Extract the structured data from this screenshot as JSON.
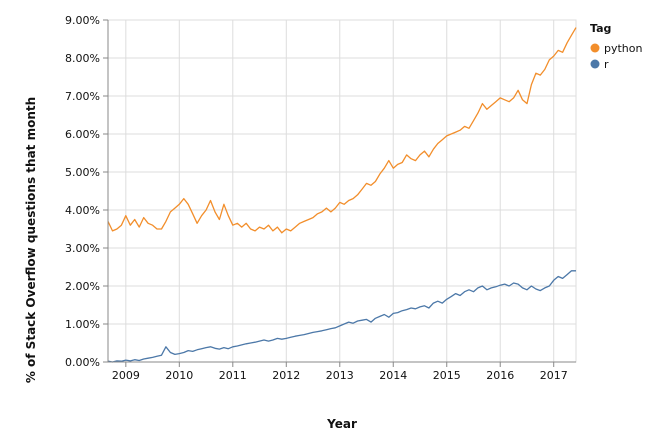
{
  "chart_data": {
    "type": "line",
    "xlabel": "Year",
    "ylabel": "% of Stack Overflow questions that month",
    "x_ticks": [
      "2009",
      "2010",
      "2011",
      "2012",
      "2013",
      "2014",
      "2015",
      "2016",
      "2017"
    ],
    "y_ticks": [
      "0.00%",
      "1.00%",
      "2.00%",
      "3.00%",
      "4.00%",
      "5.00%",
      "6.00%",
      "7.00%",
      "8.00%",
      "9.00%"
    ],
    "xlim": [
      "2008-09",
      "2017-06"
    ],
    "ylim": [
      0,
      9
    ],
    "grid": true,
    "legend": {
      "title": "Tag",
      "position": "right"
    },
    "series": [
      {
        "name": "python",
        "color": "#f28e2b",
        "points": [
          [
            "2008-09",
            3.7
          ],
          [
            "2008-10",
            3.45
          ],
          [
            "2008-11",
            3.5
          ],
          [
            "2008-12",
            3.6
          ],
          [
            "2009-01",
            3.85
          ],
          [
            "2009-02",
            3.6
          ],
          [
            "2009-03",
            3.75
          ],
          [
            "2009-04",
            3.55
          ],
          [
            "2009-05",
            3.8
          ],
          [
            "2009-06",
            3.65
          ],
          [
            "2009-07",
            3.6
          ],
          [
            "2009-08",
            3.5
          ],
          [
            "2009-09",
            3.5
          ],
          [
            "2009-10",
            3.7
          ],
          [
            "2009-11",
            3.95
          ],
          [
            "2009-12",
            4.05
          ],
          [
            "2010-01",
            4.15
          ],
          [
            "2010-02",
            4.3
          ],
          [
            "2010-03",
            4.15
          ],
          [
            "2010-04",
            3.9
          ],
          [
            "2010-05",
            3.65
          ],
          [
            "2010-06",
            3.85
          ],
          [
            "2010-07",
            4.0
          ],
          [
            "2010-08",
            4.25
          ],
          [
            "2010-09",
            3.95
          ],
          [
            "2010-10",
            3.75
          ],
          [
            "2010-11",
            4.15
          ],
          [
            "2010-12",
            3.85
          ],
          [
            "2011-01",
            3.6
          ],
          [
            "2011-02",
            3.65
          ],
          [
            "2011-03",
            3.55
          ],
          [
            "2011-04",
            3.65
          ],
          [
            "2011-05",
            3.5
          ],
          [
            "2011-06",
            3.45
          ],
          [
            "2011-07",
            3.55
          ],
          [
            "2011-08",
            3.5
          ],
          [
            "2011-09",
            3.6
          ],
          [
            "2011-10",
            3.45
          ],
          [
            "2011-11",
            3.55
          ],
          [
            "2011-12",
            3.4
          ],
          [
            "2012-01",
            3.5
          ],
          [
            "2012-02",
            3.45
          ],
          [
            "2012-03",
            3.55
          ],
          [
            "2012-04",
            3.65
          ],
          [
            "2012-05",
            3.7
          ],
          [
            "2012-06",
            3.75
          ],
          [
            "2012-07",
            3.8
          ],
          [
            "2012-08",
            3.9
          ],
          [
            "2012-09",
            3.95
          ],
          [
            "2012-10",
            4.05
          ],
          [
            "2012-11",
            3.95
          ],
          [
            "2012-12",
            4.05
          ],
          [
            "2013-01",
            4.2
          ],
          [
            "2013-02",
            4.15
          ],
          [
            "2013-03",
            4.25
          ],
          [
            "2013-04",
            4.3
          ],
          [
            "2013-05",
            4.4
          ],
          [
            "2013-06",
            4.55
          ],
          [
            "2013-07",
            4.7
          ],
          [
            "2013-08",
            4.65
          ],
          [
            "2013-09",
            4.75
          ],
          [
            "2013-10",
            4.95
          ],
          [
            "2013-11",
            5.1
          ],
          [
            "2013-12",
            5.3
          ],
          [
            "2014-01",
            5.1
          ],
          [
            "2014-02",
            5.2
          ],
          [
            "2014-03",
            5.25
          ],
          [
            "2014-04",
            5.45
          ],
          [
            "2014-05",
            5.35
          ],
          [
            "2014-06",
            5.3
          ],
          [
            "2014-07",
            5.45
          ],
          [
            "2014-08",
            5.55
          ],
          [
            "2014-09",
            5.4
          ],
          [
            "2014-10",
            5.6
          ],
          [
            "2014-11",
            5.75
          ],
          [
            "2014-12",
            5.85
          ],
          [
            "2015-01",
            5.95
          ],
          [
            "2015-02",
            6.0
          ],
          [
            "2015-03",
            6.05
          ],
          [
            "2015-04",
            6.1
          ],
          [
            "2015-05",
            6.2
          ],
          [
            "2015-06",
            6.15
          ],
          [
            "2015-07",
            6.35
          ],
          [
            "2015-08",
            6.55
          ],
          [
            "2015-09",
            6.8
          ],
          [
            "2015-10",
            6.65
          ],
          [
            "2015-11",
            6.75
          ],
          [
            "2015-12",
            6.85
          ],
          [
            "2016-01",
            6.95
          ],
          [
            "2016-02",
            6.9
          ],
          [
            "2016-03",
            6.85
          ],
          [
            "2016-04",
            6.95
          ],
          [
            "2016-05",
            7.15
          ],
          [
            "2016-06",
            6.9
          ],
          [
            "2016-07",
            6.8
          ],
          [
            "2016-08",
            7.3
          ],
          [
            "2016-09",
            7.6
          ],
          [
            "2016-10",
            7.55
          ],
          [
            "2016-11",
            7.7
          ],
          [
            "2016-12",
            7.95
          ],
          [
            "2017-01",
            8.05
          ],
          [
            "2017-02",
            8.2
          ],
          [
            "2017-03",
            8.15
          ],
          [
            "2017-04",
            8.4
          ],
          [
            "2017-05",
            8.6
          ],
          [
            "2017-06",
            8.8
          ]
        ]
      },
      {
        "name": "r",
        "color": "#4c78a8",
        "points": [
          [
            "2008-09",
            0.02
          ],
          [
            "2008-10",
            0.0
          ],
          [
            "2008-11",
            0.03
          ],
          [
            "2008-12",
            0.02
          ],
          [
            "2009-01",
            0.05
          ],
          [
            "2009-02",
            0.03
          ],
          [
            "2009-03",
            0.06
          ],
          [
            "2009-04",
            0.04
          ],
          [
            "2009-05",
            0.08
          ],
          [
            "2009-06",
            0.1
          ],
          [
            "2009-07",
            0.12
          ],
          [
            "2009-08",
            0.15
          ],
          [
            "2009-09",
            0.18
          ],
          [
            "2009-10",
            0.4
          ],
          [
            "2009-11",
            0.25
          ],
          [
            "2009-12",
            0.2
          ],
          [
            "2010-01",
            0.22
          ],
          [
            "2010-02",
            0.25
          ],
          [
            "2010-03",
            0.3
          ],
          [
            "2010-04",
            0.28
          ],
          [
            "2010-05",
            0.32
          ],
          [
            "2010-06",
            0.35
          ],
          [
            "2010-07",
            0.38
          ],
          [
            "2010-08",
            0.4
          ],
          [
            "2010-09",
            0.36
          ],
          [
            "2010-10",
            0.34
          ],
          [
            "2010-11",
            0.38
          ],
          [
            "2010-12",
            0.35
          ],
          [
            "2011-01",
            0.4
          ],
          [
            "2011-02",
            0.42
          ],
          [
            "2011-03",
            0.45
          ],
          [
            "2011-04",
            0.48
          ],
          [
            "2011-05",
            0.5
          ],
          [
            "2011-06",
            0.52
          ],
          [
            "2011-07",
            0.55
          ],
          [
            "2011-08",
            0.58
          ],
          [
            "2011-09",
            0.55
          ],
          [
            "2011-10",
            0.58
          ],
          [
            "2011-11",
            0.62
          ],
          [
            "2011-12",
            0.6
          ],
          [
            "2012-01",
            0.62
          ],
          [
            "2012-02",
            0.65
          ],
          [
            "2012-03",
            0.68
          ],
          [
            "2012-04",
            0.7
          ],
          [
            "2012-05",
            0.72
          ],
          [
            "2012-06",
            0.75
          ],
          [
            "2012-07",
            0.78
          ],
          [
            "2012-08",
            0.8
          ],
          [
            "2012-09",
            0.82
          ],
          [
            "2012-10",
            0.85
          ],
          [
            "2012-11",
            0.88
          ],
          [
            "2012-12",
            0.9
          ],
          [
            "2013-01",
            0.95
          ],
          [
            "2013-02",
            1.0
          ],
          [
            "2013-03",
            1.05
          ],
          [
            "2013-04",
            1.02
          ],
          [
            "2013-05",
            1.08
          ],
          [
            "2013-06",
            1.1
          ],
          [
            "2013-07",
            1.12
          ],
          [
            "2013-08",
            1.05
          ],
          [
            "2013-09",
            1.15
          ],
          [
            "2013-10",
            1.2
          ],
          [
            "2013-11",
            1.25
          ],
          [
            "2013-12",
            1.18
          ],
          [
            "2014-01",
            1.28
          ],
          [
            "2014-02",
            1.3
          ],
          [
            "2014-03",
            1.35
          ],
          [
            "2014-04",
            1.38
          ],
          [
            "2014-05",
            1.42
          ],
          [
            "2014-06",
            1.4
          ],
          [
            "2014-07",
            1.45
          ],
          [
            "2014-08",
            1.48
          ],
          [
            "2014-09",
            1.42
          ],
          [
            "2014-10",
            1.55
          ],
          [
            "2014-11",
            1.6
          ],
          [
            "2014-12",
            1.55
          ],
          [
            "2015-01",
            1.65
          ],
          [
            "2015-02",
            1.72
          ],
          [
            "2015-03",
            1.8
          ],
          [
            "2015-04",
            1.75
          ],
          [
            "2015-05",
            1.85
          ],
          [
            "2015-06",
            1.9
          ],
          [
            "2015-07",
            1.85
          ],
          [
            "2015-08",
            1.95
          ],
          [
            "2015-09",
            2.0
          ],
          [
            "2015-10",
            1.9
          ],
          [
            "2015-11",
            1.95
          ],
          [
            "2015-12",
            1.98
          ],
          [
            "2016-01",
            2.02
          ],
          [
            "2016-02",
            2.05
          ],
          [
            "2016-03",
            2.0
          ],
          [
            "2016-04",
            2.08
          ],
          [
            "2016-05",
            2.05
          ],
          [
            "2016-06",
            1.95
          ],
          [
            "2016-07",
            1.9
          ],
          [
            "2016-08",
            2.0
          ],
          [
            "2016-09",
            1.92
          ],
          [
            "2016-10",
            1.88
          ],
          [
            "2016-11",
            1.95
          ],
          [
            "2016-12",
            2.0
          ],
          [
            "2017-01",
            2.15
          ],
          [
            "2017-02",
            2.25
          ],
          [
            "2017-03",
            2.2
          ],
          [
            "2017-04",
            2.3
          ],
          [
            "2017-05",
            2.4
          ],
          [
            "2017-06",
            2.4
          ]
        ]
      }
    ]
  }
}
